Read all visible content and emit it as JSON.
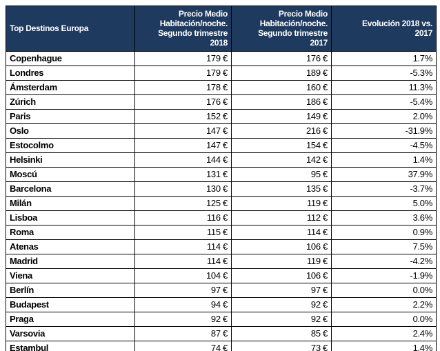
{
  "colors": {
    "header_bg": "#1F3A5F",
    "header_text": "#FFFFFF",
    "border": "#000000",
    "body_bg": "#FFFFFF",
    "body_text": "#000000"
  },
  "table": {
    "columns": [
      {
        "label": "Top Destinos Europa",
        "align": "left"
      },
      {
        "label": "Precio Medio\nHabitación/noche.\nSegundo trimestre\n2018",
        "align": "right"
      },
      {
        "label": "Precio Medio\nHabitación/noche.\nSegundo trimestre\n2017",
        "align": "right"
      },
      {
        "label": "Evolución 2018 vs.\n2017",
        "align": "right"
      }
    ],
    "rows": [
      {
        "city": "Copenhague",
        "price_2018": "179 €",
        "price_2017": "176 €",
        "evolution": "1.7%"
      },
      {
        "city": "Londres",
        "price_2018": "179 €",
        "price_2017": "189 €",
        "evolution": "-5.3%"
      },
      {
        "city": "Ámsterdam",
        "price_2018": "178 €",
        "price_2017": "160 €",
        "evolution": "11.3%"
      },
      {
        "city": "Zúrich",
        "price_2018": "176 €",
        "price_2017": "186 €",
        "evolution": "-5.4%"
      },
      {
        "city": "Paris",
        "price_2018": "152 €",
        "price_2017": "149 €",
        "evolution": "2.0%"
      },
      {
        "city": "Oslo",
        "price_2018": "147 €",
        "price_2017": "216 €",
        "evolution": "-31.9%"
      },
      {
        "city": "Estocolmo",
        "price_2018": "147 €",
        "price_2017": "154 €",
        "evolution": "-4.5%"
      },
      {
        "city": "Helsinki",
        "price_2018": "144 €",
        "price_2017": "142 €",
        "evolution": "1.4%"
      },
      {
        "city": "Moscú",
        "price_2018": "131 €",
        "price_2017": "95 €",
        "evolution": "37.9%"
      },
      {
        "city": "Barcelona",
        "price_2018": "130 €",
        "price_2017": "135 €",
        "evolution": "-3.7%"
      },
      {
        "city": "Milán",
        "price_2018": "125 €",
        "price_2017": "119 €",
        "evolution": "5.0%"
      },
      {
        "city": "Lisboa",
        "price_2018": "116 €",
        "price_2017": "112 €",
        "evolution": "3.6%"
      },
      {
        "city": "Roma",
        "price_2018": "115 €",
        "price_2017": "114 €",
        "evolution": "0.9%"
      },
      {
        "city": "Atenas",
        "price_2018": "114 €",
        "price_2017": "106 €",
        "evolution": "7.5%"
      },
      {
        "city": "Madrid",
        "price_2018": "114 €",
        "price_2017": "119 €",
        "evolution": "-4.2%"
      },
      {
        "city": "Viena",
        "price_2018": "104 €",
        "price_2017": "106 €",
        "evolution": "-1.9%"
      },
      {
        "city": "Berlín",
        "price_2018": "97 €",
        "price_2017": "97 €",
        "evolution": "0.0%"
      },
      {
        "city": "Budapest",
        "price_2018": "94 €",
        "price_2017": "92 €",
        "evolution": "2.2%"
      },
      {
        "city": "Praga",
        "price_2018": "92 €",
        "price_2017": "92 €",
        "evolution": "0.0%"
      },
      {
        "city": "Varsovia",
        "price_2018": "87 €",
        "price_2017": "85 €",
        "evolution": "2.4%"
      },
      {
        "city": "Estambul",
        "price_2018": "74 €",
        "price_2017": "73 €",
        "evolution": "1.4%"
      }
    ]
  },
  "chart_data": {
    "type": "table",
    "title": "Top Destinos Europa",
    "columns": [
      "Top Destinos Europa",
      "Precio Medio Habitación/noche. Segundo trimestre 2018",
      "Precio Medio Habitación/noche. Segundo trimestre 2017",
      "Evolución 2018 vs. 2017"
    ],
    "categories": [
      "Copenhague",
      "Londres",
      "Ámsterdam",
      "Zúrich",
      "Paris",
      "Oslo",
      "Estocolmo",
      "Helsinki",
      "Moscú",
      "Barcelona",
      "Milán",
      "Lisboa",
      "Roma",
      "Atenas",
      "Madrid",
      "Viena",
      "Berlín",
      "Budapest",
      "Praga",
      "Varsovia",
      "Estambul"
    ],
    "series": [
      {
        "name": "Precio Medio Habitación/noche. Segundo trimestre 2018 (€)",
        "values": [
          179,
          179,
          178,
          176,
          152,
          147,
          147,
          144,
          131,
          130,
          125,
          116,
          115,
          114,
          114,
          104,
          97,
          94,
          92,
          87,
          74
        ]
      },
      {
        "name": "Precio Medio Habitación/noche. Segundo trimestre 2017 (€)",
        "values": [
          176,
          189,
          160,
          186,
          149,
          216,
          154,
          142,
          95,
          135,
          119,
          112,
          114,
          106,
          119,
          106,
          97,
          92,
          92,
          85,
          73
        ]
      },
      {
        "name": "Evolución 2018 vs. 2017 (%)",
        "values": [
          1.7,
          -5.3,
          11.3,
          -5.4,
          2.0,
          -31.9,
          -4.5,
          1.4,
          37.9,
          -3.7,
          5.0,
          3.6,
          0.9,
          7.5,
          -4.2,
          -1.9,
          0.0,
          2.2,
          0.0,
          2.4,
          1.4
        ]
      }
    ]
  }
}
